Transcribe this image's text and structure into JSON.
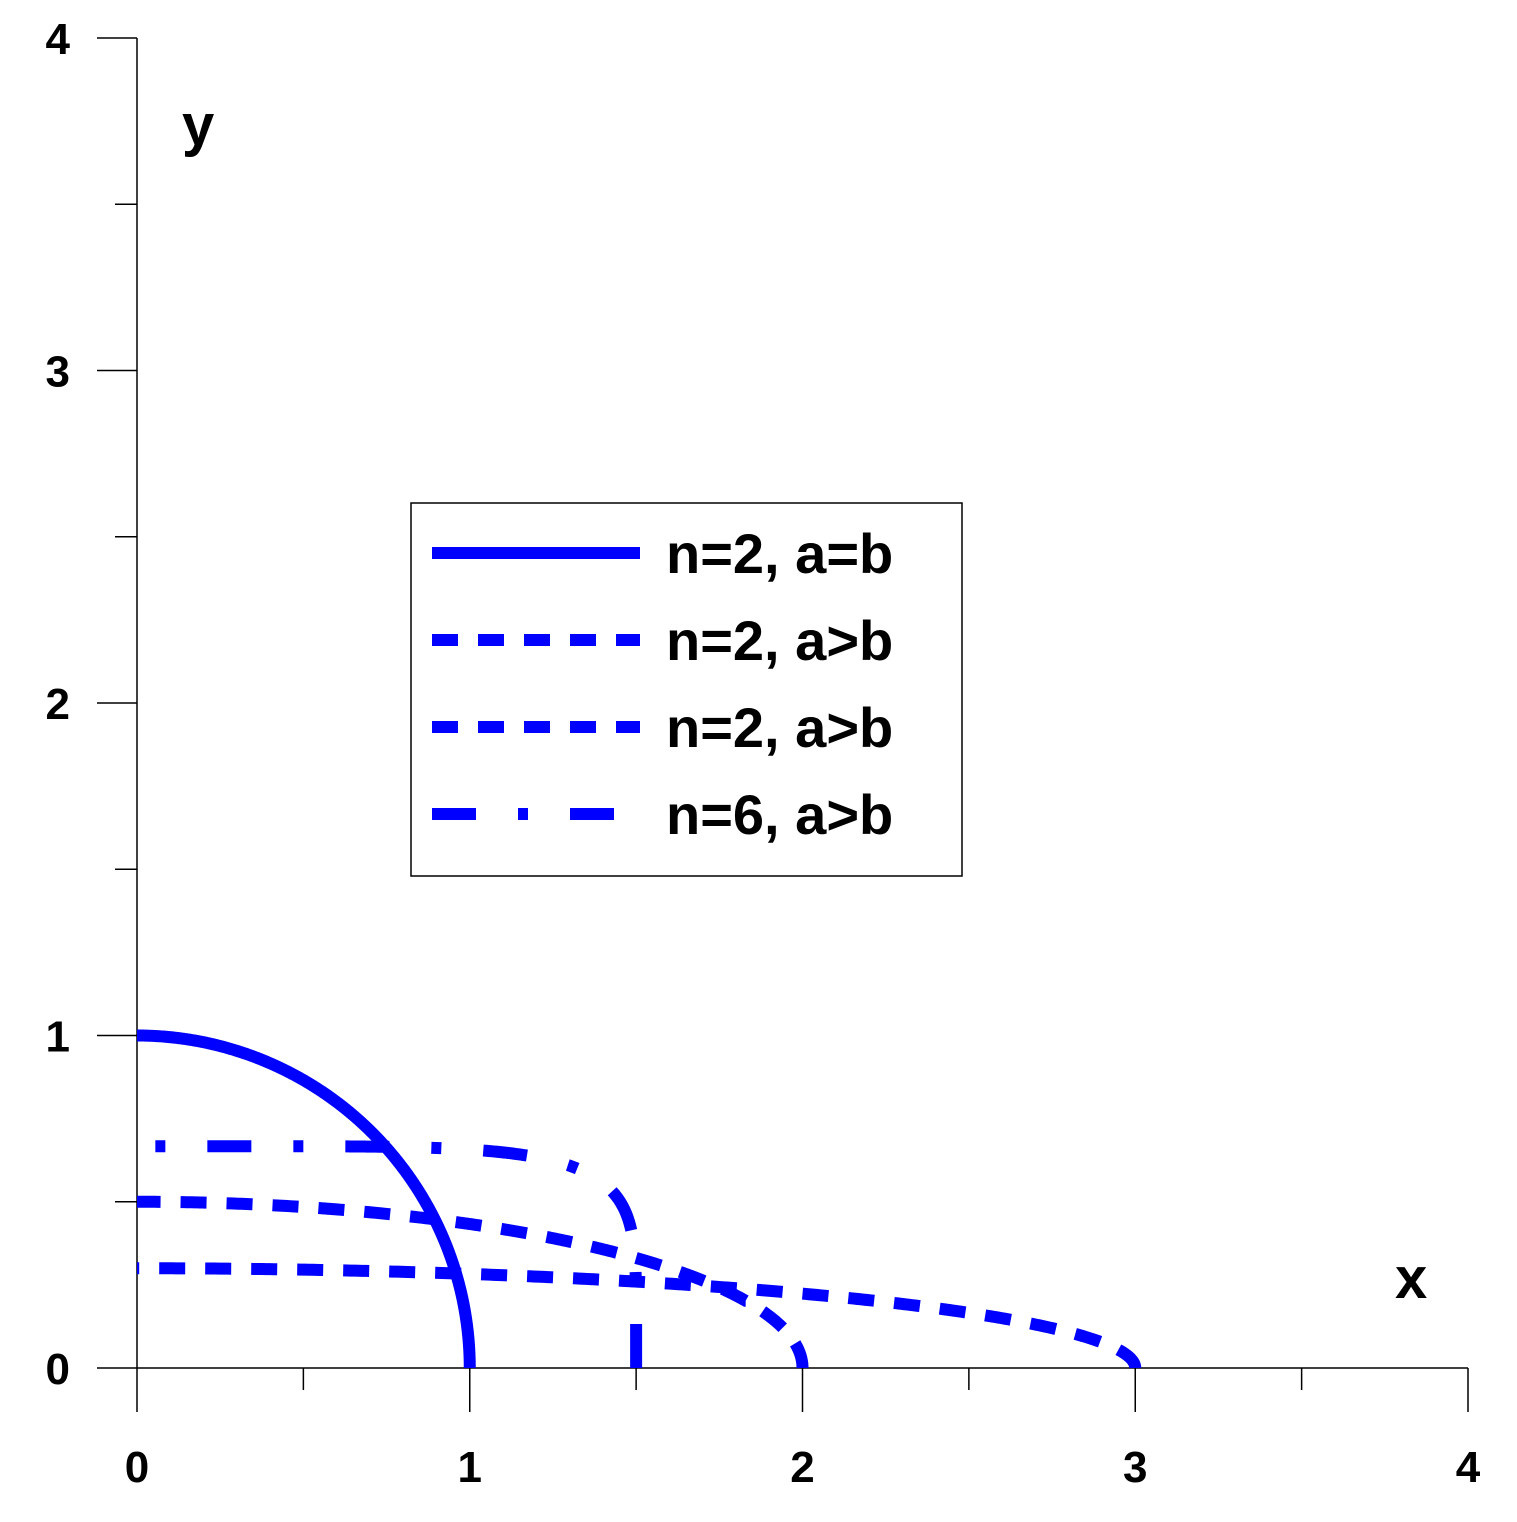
{
  "chart_data": {
    "type": "line",
    "title": "",
    "xlabel": "x",
    "ylabel": "y",
    "xlim": [
      0,
      4
    ],
    "ylim": [
      0,
      4
    ],
    "x_ticks": [
      "0",
      "1",
      "2",
      "3",
      "4"
    ],
    "y_ticks": [
      "0",
      "1",
      "2",
      "3",
      "4"
    ],
    "grid": false,
    "legend_position": "center",
    "line_color": "#0000ff",
    "series": [
      {
        "name": "n=2, a=b",
        "style": "solid",
        "n": 2,
        "a": 1,
        "b": 1
      },
      {
        "name": "n=2, a>b",
        "style": "dash",
        "n": 2,
        "a": 3,
        "b": 0.3
      },
      {
        "name": "n=2, a>b",
        "style": "dash",
        "n": 2,
        "a": 2,
        "b": 0.5
      },
      {
        "name": "n=6, a>b",
        "style": "dashdot",
        "n": 6,
        "a": 1.5,
        "b": 0.667
      }
    ]
  }
}
